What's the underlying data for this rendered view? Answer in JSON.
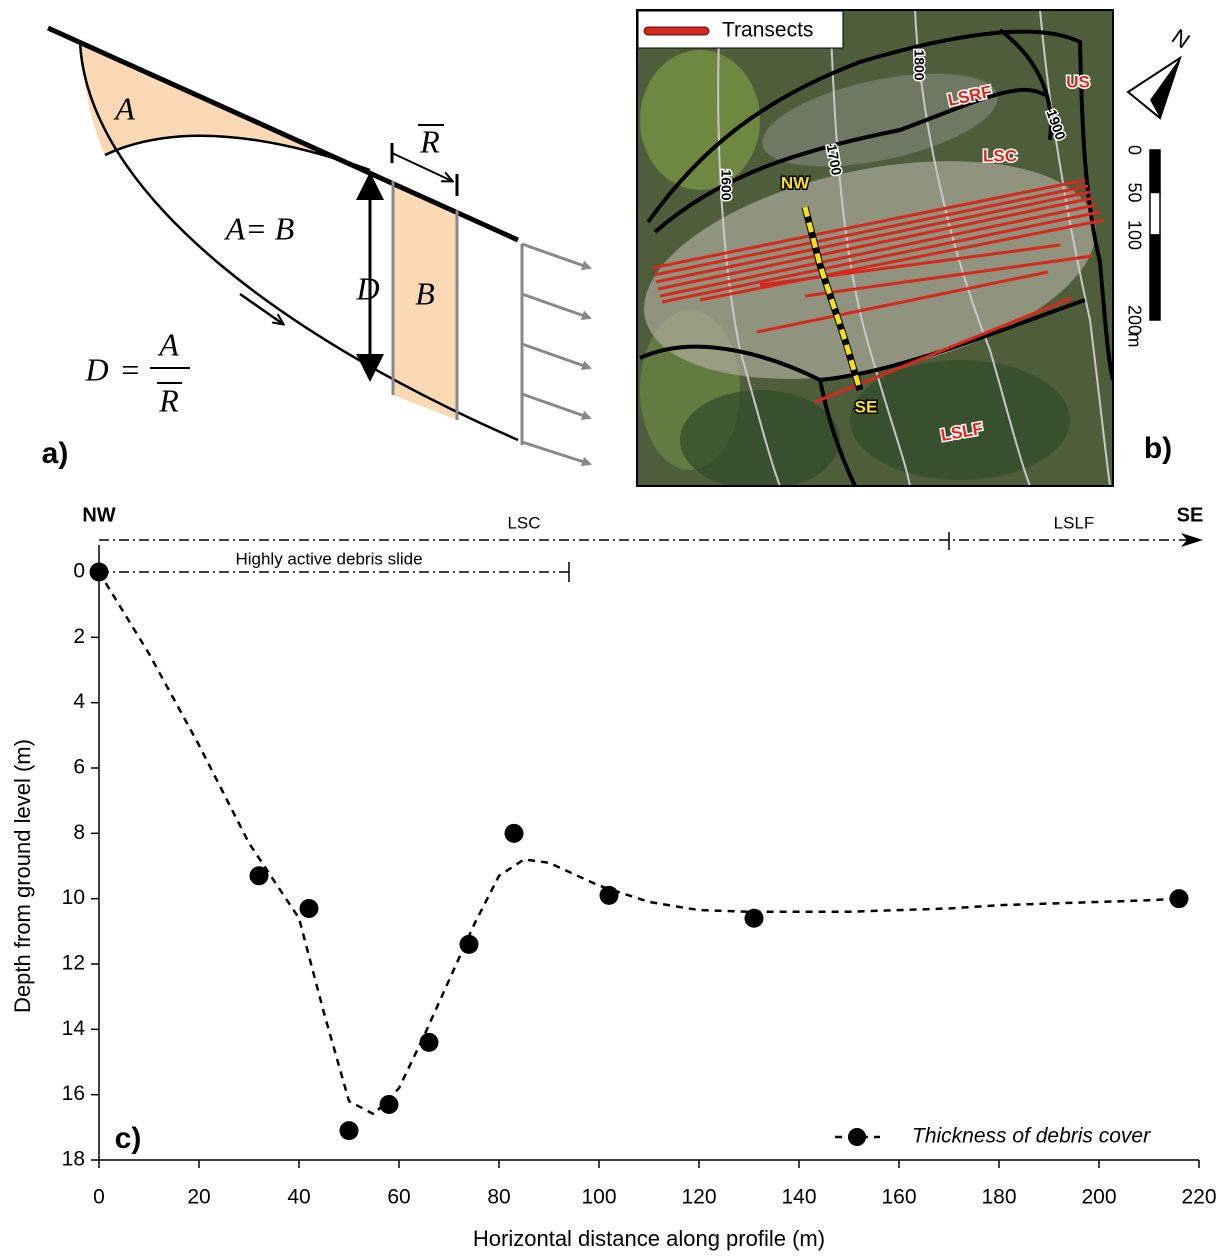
{
  "panel_a": {
    "label": "a)",
    "area_a": "A",
    "area_b": "B",
    "equality": "A= B",
    "depth": "D",
    "mean_displacement": "R",
    "formula": {
      "lhs": "D",
      "equals": "=",
      "numerator": "A",
      "denominator": "R"
    }
  },
  "panel_b": {
    "label": "b)",
    "legend": "Transects",
    "contours": [
      1600,
      1700,
      1800,
      1900
    ],
    "zones": [
      "LSRF",
      "US",
      "LSC",
      "LSLF"
    ],
    "profile_ends": [
      "NW",
      "SE"
    ],
    "scale": [
      0,
      50,
      100,
      200
    ],
    "scale_unit": "m",
    "north": "N"
  },
  "chart_data": {
    "type": "scatter",
    "panel_label": "c)",
    "xlabel": "Horizontal distance along profile (m)",
    "ylabel": "Depth from ground level (m)",
    "xlim": [
      0,
      220
    ],
    "xticks": [
      0,
      20,
      40,
      60,
      80,
      100,
      120,
      140,
      160,
      180,
      200,
      220
    ],
    "ylim": [
      0,
      18
    ],
    "yticks": [
      0,
      2,
      4,
      6,
      8,
      10,
      12,
      14,
      16,
      18
    ],
    "y_inverted": true,
    "legend": "lower right",
    "profile": {
      "start": "NW",
      "end": "SE",
      "zones": [
        {
          "name": "LSC",
          "to": 170
        },
        {
          "name": "LSLF",
          "to": 220
        }
      ],
      "active": {
        "name": "Highly active debris slide",
        "to": 94
      }
    },
    "series": [
      {
        "name": "Thickness of debris cover",
        "color": "#000000",
        "line_style": "dashed",
        "x": [
          0,
          32,
          42,
          50,
          58,
          66,
          74,
          83,
          102,
          131,
          216
        ],
        "values": [
          0,
          9.3,
          10.3,
          17.1,
          16.3,
          14.4,
          11.4,
          8.0,
          9.9,
          10.6,
          10.0
        ],
        "fit_x": [
          0,
          10,
          20,
          30,
          40,
          45,
          50,
          55,
          60,
          65,
          70,
          75,
          80,
          85,
          90,
          100,
          110,
          120,
          130,
          140,
          150,
          160,
          170,
          180,
          190,
          200,
          210,
          216
        ],
        "fit_values": [
          0,
          2.5,
          5.3,
          8.3,
          10.6,
          13.5,
          16.2,
          16.6,
          15.8,
          14.2,
          12.5,
          10.8,
          9.3,
          8.8,
          8.9,
          9.6,
          10.1,
          10.35,
          10.4,
          10.4,
          10.4,
          10.35,
          10.3,
          10.2,
          10.15,
          10.1,
          10.05,
          10.0
        ]
      }
    ]
  }
}
